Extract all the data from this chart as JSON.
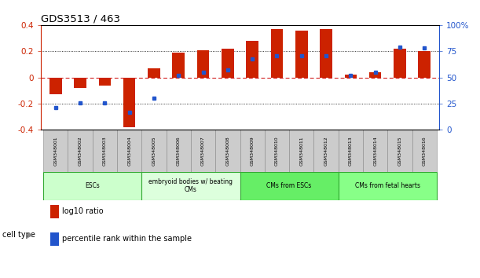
{
  "title": "GDS3513 / 463",
  "samples": [
    "GSM348001",
    "GSM348002",
    "GSM348003",
    "GSM348004",
    "GSM348005",
    "GSM348006",
    "GSM348007",
    "GSM348008",
    "GSM348009",
    "GSM348010",
    "GSM348011",
    "GSM348012",
    "GSM348013",
    "GSM348014",
    "GSM348015",
    "GSM348016"
  ],
  "log10_ratio": [
    -0.13,
    -0.08,
    -0.06,
    -0.38,
    0.07,
    0.19,
    0.21,
    0.22,
    0.28,
    0.37,
    0.36,
    0.37,
    0.02,
    0.04,
    0.22,
    0.2
  ],
  "percentile_rank": [
    21,
    26,
    26,
    17,
    30,
    52,
    55,
    57,
    68,
    71,
    71,
    71,
    52,
    55,
    79,
    78
  ],
  "bar_color": "#cc2200",
  "dot_color": "#2255cc",
  "ylim_left": [
    -0.4,
    0.4
  ],
  "ylim_right": [
    0,
    100
  ],
  "yticks_left": [
    -0.4,
    -0.2,
    0.0,
    0.2,
    0.4
  ],
  "yticks_right": [
    0,
    25,
    50,
    75,
    100
  ],
  "ytick_labels_right": [
    "0",
    "25",
    "50",
    "75",
    "100%"
  ],
  "ytick_labels_left": [
    "-0.4",
    "-0.2",
    "0",
    "0.2",
    "0.4"
  ],
  "hlines_dotted": [
    -0.2,
    0.2
  ],
  "hline_zero_color": "#cc0000",
  "cell_type_groups": [
    {
      "label": "ESCs",
      "start": 0,
      "end": 3,
      "color": "#ccffcc"
    },
    {
      "label": "embryoid bodies w/ beating\nCMs",
      "start": 4,
      "end": 7,
      "color": "#ddffdd"
    },
    {
      "label": "CMs from ESCs",
      "start": 8,
      "end": 11,
      "color": "#66ee66"
    },
    {
      "label": "CMs from fetal hearts",
      "start": 12,
      "end": 15,
      "color": "#88ff88"
    }
  ],
  "legend_items": [
    {
      "label": "log10 ratio",
      "color": "#cc2200"
    },
    {
      "label": "percentile rank within the sample",
      "color": "#2255cc"
    }
  ],
  "cell_type_label": "cell type",
  "sample_box_color": "#cccccc",
  "sample_box_edge": "#888888",
  "bg_color": "#ffffff",
  "tick_color_left": "#cc2200",
  "tick_color_right": "#2255cc"
}
